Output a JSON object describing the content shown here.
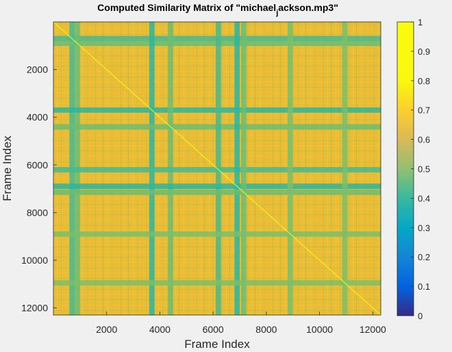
{
  "window": {
    "background": "#f0f0f0"
  },
  "chart_data": {
    "type": "heatmap",
    "title_main": "Computed Similarity Matrix of \"michael",
    "title_sub": "j",
    "title_tail": "ackson.mp3\"",
    "xlabel": "Frame Index",
    "ylabel": "Frame Index",
    "xlim": [
      1,
      12300
    ],
    "ylim": [
      1,
      12300
    ],
    "y_reversed": true,
    "x_ticks": [
      2000,
      4000,
      6000,
      8000,
      10000,
      12000
    ],
    "x_tick_labels": [
      "2000",
      "4000",
      "6000",
      "8000",
      "10000",
      "12000"
    ],
    "y_ticks": [
      2000,
      4000,
      6000,
      8000,
      10000,
      12000
    ],
    "y_tick_labels": [
      "2000",
      "4000",
      "6000",
      "8000",
      "10000",
      "12000"
    ],
    "colormap": "parula",
    "clim": [
      0,
      1
    ],
    "colorbar": {
      "position": "right",
      "ticks": [
        0,
        0.1,
        0.2,
        0.3,
        0.4,
        0.5,
        0.6,
        0.7,
        0.8,
        0.9,
        1
      ],
      "tick_labels": [
        "0",
        "0.1",
        "0.2",
        "0.3",
        "0.4",
        "0.5",
        "0.6",
        "0.7",
        "0.8",
        "0.9",
        "1"
      ]
    },
    "diagonal_value": 1,
    "typical_value": 0.78,
    "low_similarity_frames": [
      {
        "frame": 700,
        "value": 0.55
      },
      {
        "frame": 900,
        "value": 0.6
      },
      {
        "frame": 3700,
        "value": 0.5
      },
      {
        "frame": 4400,
        "value": 0.6
      },
      {
        "frame": 6200,
        "value": 0.55
      },
      {
        "frame": 6900,
        "value": 0.5
      },
      {
        "frame": 7150,
        "value": 0.6
      },
      {
        "frame": 8900,
        "value": 0.62
      },
      {
        "frame": 10950,
        "value": 0.62
      }
    ]
  }
}
